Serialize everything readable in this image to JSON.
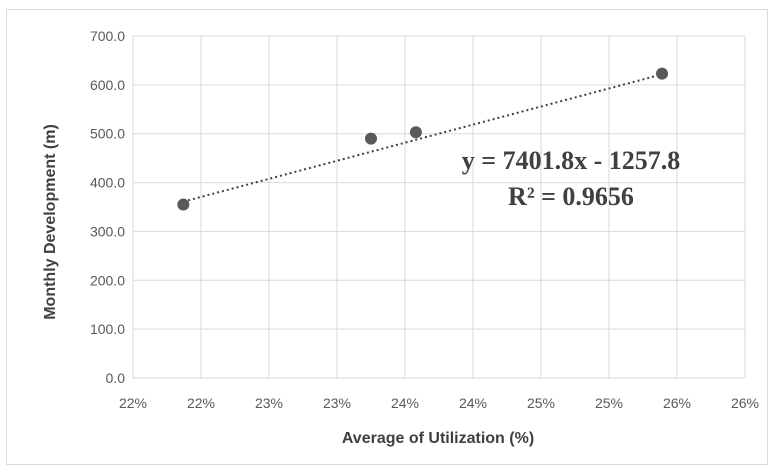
{
  "chart_data": {
    "type": "scatter",
    "title": "",
    "xlabel": "Average of Utilization (%)",
    "ylabel": "Monthly Development (m)",
    "xlim": [
      0.215,
      0.26
    ],
    "ylim": [
      0,
      700
    ],
    "x_tick_labels": [
      "22%",
      "22%",
      "23%",
      "23%",
      "24%",
      "24%",
      "25%",
      "25%",
      "26%",
      "26%"
    ],
    "y_ticks": [
      0,
      100,
      200,
      300,
      400,
      500,
      600,
      700
    ],
    "y_tick_labels": [
      "0.0",
      "100.0",
      "200.0",
      "300.0",
      "400.0",
      "500.0",
      "600.0",
      "700.0"
    ],
    "grid": true,
    "legend": "none",
    "series": [
      {
        "x": [
          0.2187,
          0.2325,
          0.2358,
          0.2539
        ],
        "y": [
          355,
          490,
          503,
          623
        ],
        "marker_color": "#595959"
      }
    ],
    "trendline": {
      "type": "linear",
      "slope": 7401.8,
      "intercept": -1257.8,
      "style": "dotted",
      "color": "#404040"
    },
    "annotations": {
      "equation": "y = 7401.8x - 1257.8",
      "r_squared": "R² = 0.9656"
    }
  }
}
